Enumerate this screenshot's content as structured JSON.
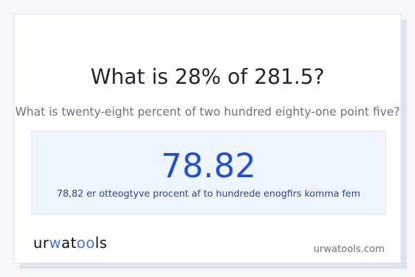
{
  "question": {
    "title": "What is 28% of 281.5?",
    "subtitle": "What is twenty-eight percent of two hundred eighty-one point five?"
  },
  "result": {
    "value": "78.82",
    "words": "78,82 er otteogtyve procent af to hundrede enogfirs komma fem"
  },
  "footer": {
    "logo": "urwatools",
    "domain": "urwatools.com"
  },
  "colors": {
    "accent": "#2350d0",
    "result_bg": "#eef5fe",
    "logo_accent": "#4a6ee0"
  }
}
